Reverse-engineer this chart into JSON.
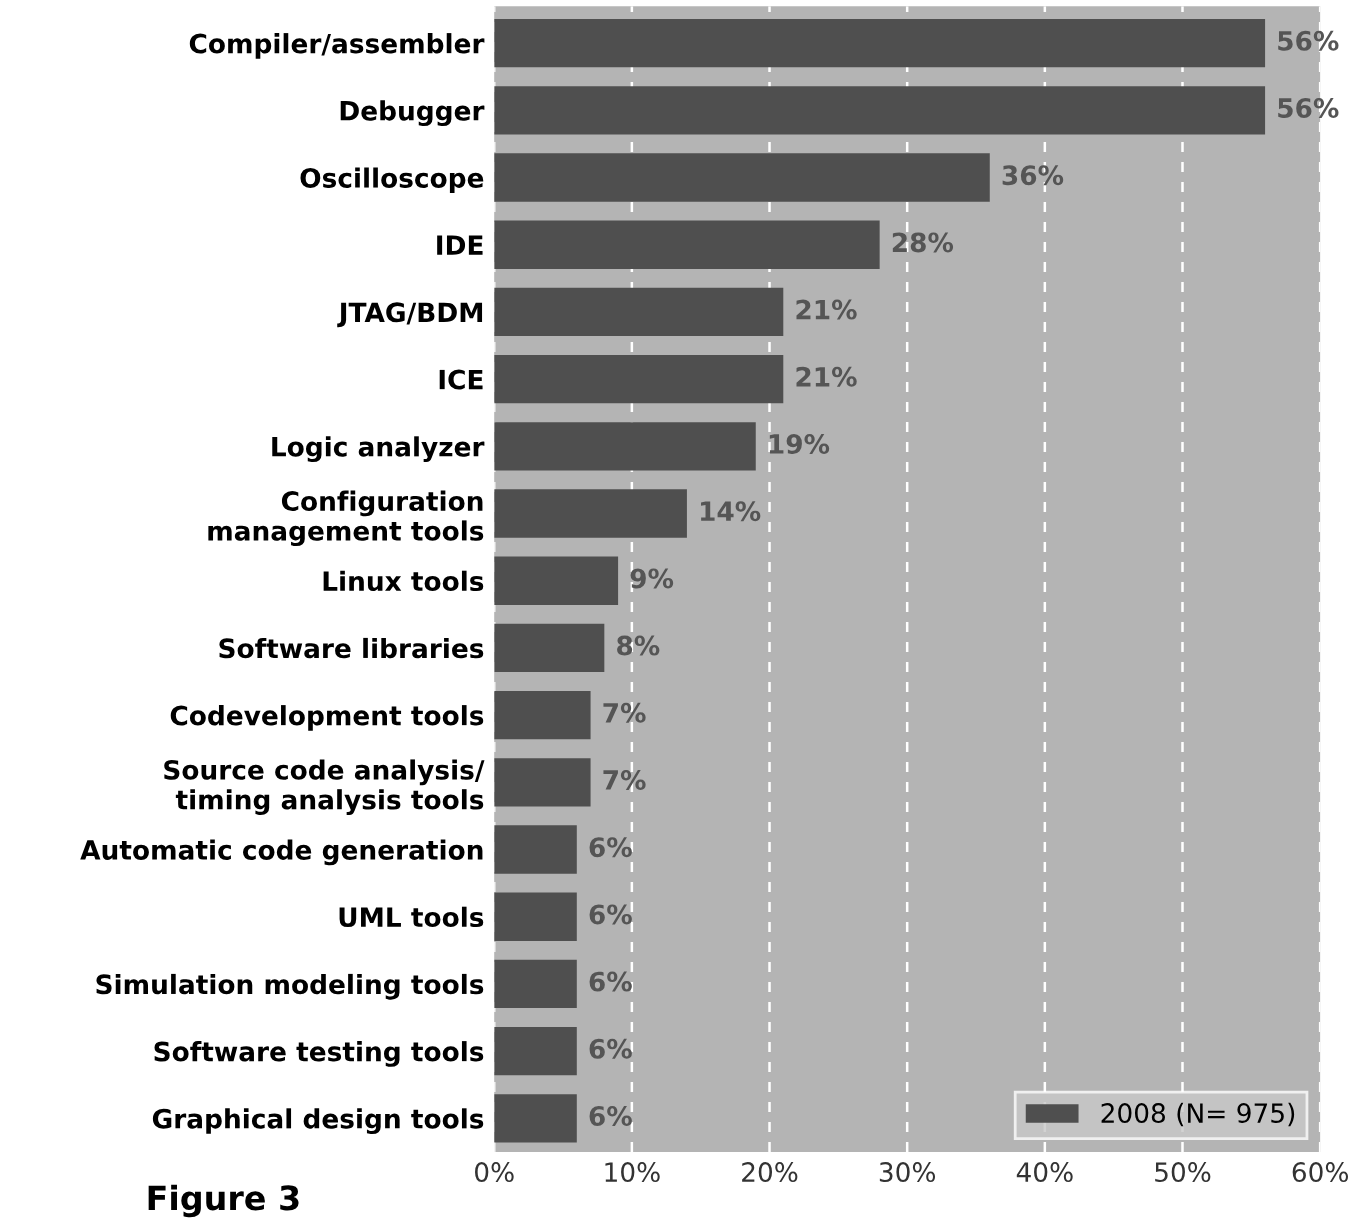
{
  "chart_data": {
    "type": "bar",
    "orientation": "horizontal",
    "categories": [
      "Compiler/assembler",
      "Debugger",
      "Oscilloscope",
      "IDE",
      "JTAG/BDM",
      "ICE",
      "Logic analyzer",
      "Configuration\nmanagement tools",
      "Linux tools",
      "Software libraries",
      "Codevelopment tools",
      "Source code analysis/\ntiming analysis tools",
      "Automatic code generation",
      "UML tools",
      "Simulation modeling tools",
      "Software testing tools",
      "Graphical design tools"
    ],
    "series": [
      {
        "name": "2008 (N= 975)",
        "color": "#4f4f4f",
        "values": [
          56,
          56,
          36,
          28,
          21,
          21,
          19,
          14,
          9,
          8,
          7,
          7,
          6,
          6,
          6,
          6,
          6
        ]
      }
    ],
    "value_labels": [
      "56%",
      "56%",
      "36%",
      "28%",
      "21%",
      "21%",
      "19%",
      "14%",
      "9%",
      "8%",
      "7%",
      "7%",
      "6%",
      "6%",
      "6%",
      "6%",
      "6%"
    ],
    "xlim": [
      0,
      60
    ],
    "xticks": [
      {
        "value": 0,
        "label": "0%"
      },
      {
        "value": 10,
        "label": "10%"
      },
      {
        "value": 20,
        "label": "20%"
      },
      {
        "value": 30,
        "label": "30%"
      },
      {
        "value": 40,
        "label": "40%"
      },
      {
        "value": 50,
        "label": "50%"
      },
      {
        "value": 60,
        "label": "60%"
      }
    ],
    "grid": "x",
    "legend": "bottom right",
    "annotations": [
      "Figure 3"
    ]
  }
}
